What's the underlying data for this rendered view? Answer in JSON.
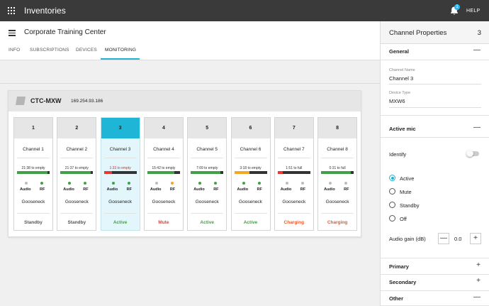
{
  "app": {
    "title": "Inventories",
    "notification_count": "1",
    "help_label": "HELP"
  },
  "page": {
    "title": "Corporate Training Center",
    "tabs": [
      {
        "label": "INFO"
      },
      {
        "label": "SUBSCRIPTIONS"
      },
      {
        "label": "DEVICES"
      },
      {
        "label": "MONITORING"
      }
    ],
    "active_tab": "MONITORING"
  },
  "device": {
    "name": "CTC-MXW",
    "ip": "169.254.93.186",
    "channels": [
      {
        "number": "1",
        "name": "Channel 1",
        "time": "21:38 to empty",
        "battery_pct": 93,
        "bar_color": "#43a047",
        "audio_color": "#bdbdbd",
        "rf_color": "#43a047",
        "audio_label": "Audio",
        "rf_label": "RF",
        "mic": "Gooseneck",
        "status": "Standby",
        "status_color": "#555555",
        "selected": false
      },
      {
        "number": "2",
        "name": "Channel 2",
        "time": "21:37 to empty",
        "battery_pct": 93,
        "bar_color": "#43a047",
        "audio_color": "#43a047",
        "rf_color": "#43a047",
        "audio_label": "Audio",
        "rf_label": "RF",
        "mic": "Gooseneck",
        "status": "Standby",
        "status_color": "#555555",
        "selected": false
      },
      {
        "number": "3",
        "name": "Channel 3",
        "time": "1:33 to empty",
        "battery_pct": 24,
        "bar_color": "#e53935",
        "audio_color": "#43a047",
        "rf_color": "#43a047",
        "audio_label": "Audio",
        "rf_label": "RF",
        "mic": "Gooseneck",
        "status": "Active",
        "status_color": "#43a047",
        "selected": true
      },
      {
        "number": "4",
        "name": "Channel 4",
        "time": "15:42 to empty",
        "battery_pct": 82,
        "bar_color": "#43a047",
        "audio_color": "#bdbdbd",
        "rf_color": "#f5a623",
        "audio_label": "Audio",
        "rf_label": "RF",
        "mic": "Gooseneck",
        "status": "Mute",
        "status_color": "#e53935",
        "selected": false
      },
      {
        "number": "5",
        "name": "Channel 5",
        "time": "7:09 to empty",
        "battery_pct": 91,
        "bar_color": "#43a047",
        "audio_color": "#43a047",
        "rf_color": "#43a047",
        "audio_label": "Audio",
        "rf_label": "RF",
        "mic": "Gooseneck",
        "status": "Active",
        "status_color": "#43a047",
        "selected": false
      },
      {
        "number": "6",
        "name": "Channel 6",
        "time": "3:18 to empty",
        "battery_pct": 47,
        "bar_color": "#f5a623",
        "audio_color": "#43a047",
        "rf_color": "#43a047",
        "audio_label": "Audio",
        "rf_label": "RF",
        "mic": "Gooseneck",
        "status": "Active",
        "status_color": "#43a047",
        "selected": false
      },
      {
        "number": "7",
        "name": "Channel 7",
        "time": "1:51 to full",
        "battery_pct": 16,
        "bar_color": "#e53935",
        "audio_color": "#bdbdbd",
        "rf_color": "#bdbdbd",
        "audio_label": "Audio",
        "rf_label": "RF",
        "mic": "Gooseneck",
        "status": "Charging",
        "status_color": "#e8572c",
        "selected": false
      },
      {
        "number": "8",
        "name": "Channel 8",
        "time": "0:31 to full",
        "battery_pct": 91,
        "bar_color": "#43a047",
        "audio_color": "#bdbdbd",
        "rf_color": "#bdbdbd",
        "audio_label": "Audio",
        "rf_label": "RF",
        "mic": "Gooseneck",
        "status": "Charging",
        "status_color": "#e8572c",
        "selected": false
      }
    ]
  },
  "panel": {
    "title": "Channel Properties",
    "number": "3",
    "general": {
      "title": "General",
      "toggle": "—",
      "channel_name_label": "Channel Name",
      "channel_name": "Channel 3",
      "device_type_label": "Device Type",
      "device_type": "MXW6"
    },
    "active_mic": {
      "title": "Active mic",
      "toggle": "—",
      "identify_label": "Identify",
      "options": [
        "Active",
        "Mute",
        "Standby",
        "Off"
      ],
      "selected": "Active",
      "gain_label": "Audio gain (dB)",
      "gain_value": "0.0",
      "minus": "—",
      "plus": "+"
    },
    "sections": [
      {
        "title": "Primary",
        "toggle": "+"
      },
      {
        "title": "Secondary",
        "toggle": "+"
      },
      {
        "title": "Other",
        "toggle": "—"
      }
    ]
  }
}
